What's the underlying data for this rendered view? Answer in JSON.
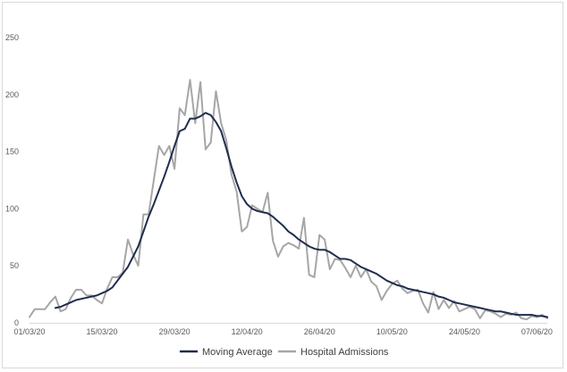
{
  "chart_data": {
    "type": "line",
    "title": "",
    "xlabel": "",
    "ylabel": "",
    "ylim": [
      0,
      250
    ],
    "yticks": [
      0,
      50,
      100,
      150,
      200,
      250
    ],
    "xtick_labels": [
      "01/03/20",
      "15/03/20",
      "29/03/20",
      "12/04/20",
      "26/04/20",
      "10/05/20",
      "24/05/20",
      "07/06/20"
    ],
    "grid": false,
    "legend": "bottom",
    "series": [
      {
        "name": "Moving Average",
        "color": "#1f2d4e",
        "x_start": 5,
        "values": [
          13,
          14,
          16,
          18,
          20,
          21,
          22,
          23,
          24,
          26,
          28,
          31,
          37,
          43,
          49,
          58,
          67,
          80,
          93,
          104,
          116,
          128,
          141,
          155,
          168,
          170,
          179,
          179,
          181,
          184,
          182,
          176,
          168,
          153,
          137,
          123,
          111,
          104,
          100,
          98,
          97,
          96,
          93,
          89,
          85,
          80,
          77,
          73,
          70,
          67,
          65,
          64,
          64,
          62,
          59,
          56,
          56,
          55,
          52,
          49,
          47,
          45,
          43,
          40,
          37,
          35,
          33,
          32,
          30,
          29,
          28,
          27,
          26,
          25,
          23,
          22,
          20,
          18,
          17,
          16,
          15,
          14,
          13,
          12,
          11,
          10,
          10,
          9,
          8,
          7,
          7,
          7,
          7,
          6,
          6,
          5
        ]
      },
      {
        "name": "Hospital Admissions",
        "color": "#a6a6a6",
        "x_start": 0,
        "values": [
          5,
          12,
          12,
          12,
          18,
          23,
          10,
          12,
          22,
          29,
          29,
          24,
          24,
          20,
          17,
          30,
          40,
          40,
          44,
          73,
          60,
          50,
          95,
          95,
          125,
          155,
          147,
          155,
          135,
          188,
          182,
          213,
          175,
          211,
          152,
          158,
          203,
          175,
          160,
          130,
          115,
          80,
          84,
          103,
          100,
          97,
          114,
          72,
          58,
          67,
          70,
          68,
          65,
          92,
          42,
          40,
          77,
          73,
          47,
          56,
          55,
          48,
          40,
          50,
          40,
          47,
          36,
          32,
          20,
          28,
          34,
          37,
          30,
          26,
          28,
          29,
          17,
          9,
          27,
          12,
          20,
          13,
          19,
          10,
          12,
          14,
          12,
          4,
          11,
          10,
          8,
          5,
          8,
          7,
          9,
          4,
          3,
          6,
          5,
          7,
          4
        ]
      }
    ]
  }
}
